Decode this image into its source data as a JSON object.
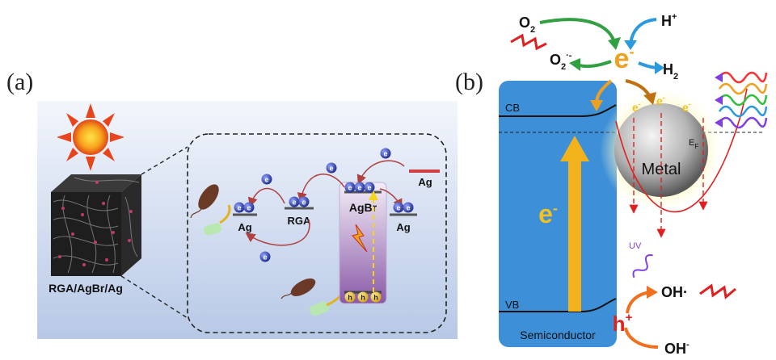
{
  "panel_a": {
    "label": "(a)",
    "composite_label": "RGA/AgBr/Ag",
    "sun_icon": "sun-icon",
    "nodes": {
      "left_ag": "Ag",
      "rga": "RGA",
      "agbr": "AgBr",
      "mid_ag": "Ag",
      "right_ag": "Ag"
    },
    "electron": "e",
    "hole": "h",
    "colors": {
      "background_top": "#eef3fb",
      "background_bottom": "#b9c9e6",
      "electron": "#2b3a9a",
      "arrow": "#b04040",
      "agbr_top": "#f4eef8",
      "agbr_bottom": "#8a5aa8"
    }
  },
  "panel_b": {
    "label": "(b)",
    "o2": "O",
    "o2_sub": "2",
    "o2_radical": "O",
    "o2_radical_sub": "2",
    "o2_radical_sup": "·-",
    "h_plus": "H",
    "h_plus_sup": "+",
    "h2": "H",
    "h2_sub": "2",
    "e_top": "e",
    "e_top_sup": "-",
    "cb": "CB",
    "vb": "VB",
    "fermi": "E",
    "fermi_sub": "F",
    "metal": "Metal",
    "metal_e": "e",
    "metal_e_sup": "-",
    "e_big": "e",
    "e_big_sup": "-",
    "uv": "UV",
    "oh_radical": "OH·",
    "h_hole": "h",
    "h_hole_sup": "+",
    "oh_minus": "OH",
    "oh_minus_sup": "-",
    "semiconductor": "Semiconductor",
    "colors": {
      "semiconductor": "#3d8fd8",
      "electron_orange": "#f0a020",
      "curve": "#e02020",
      "hole": "#e0201a",
      "metal_center": "#d8d8d8",
      "metal_edge": "#555555",
      "glow": "#fff6a0"
    }
  }
}
